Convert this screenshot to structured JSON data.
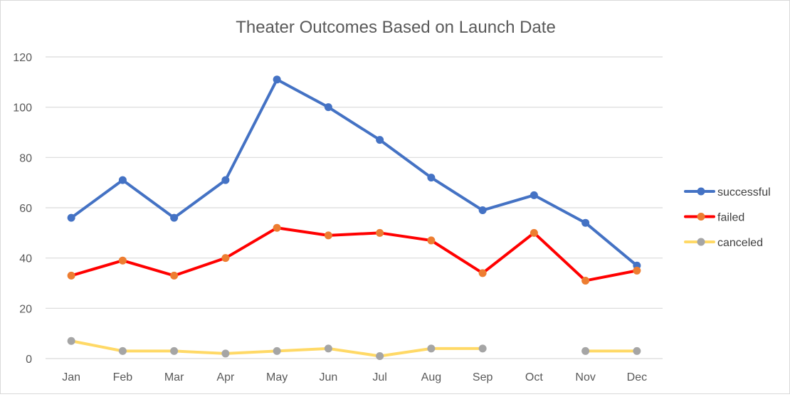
{
  "chart_data": {
    "type": "line",
    "title": "Theater Outcomes Based on Launch Date",
    "xlabel": "",
    "ylabel": "",
    "categories": [
      "Jan",
      "Feb",
      "Mar",
      "Apr",
      "May",
      "Jun",
      "Jul",
      "Aug",
      "Sep",
      "Oct",
      "Nov",
      "Dec"
    ],
    "ylim": [
      0,
      120
    ],
    "yticks": [
      0,
      20,
      40,
      60,
      80,
      100,
      120
    ],
    "grid": true,
    "legend_position": "right",
    "series": [
      {
        "name": "successful",
        "line_color": "#4472C4",
        "marker_color": "#4472C4",
        "values": [
          56,
          71,
          56,
          71,
          111,
          100,
          87,
          72,
          59,
          65,
          54,
          37
        ]
      },
      {
        "name": "failed",
        "line_color": "#FF0000",
        "marker_color": "#ED7D31",
        "values": [
          33,
          39,
          33,
          40,
          52,
          49,
          50,
          47,
          34,
          50,
          31,
          35
        ]
      },
      {
        "name": "canceled",
        "line_color": "#FFD966",
        "marker_color": "#A5A5A5",
        "values": [
          7,
          3,
          3,
          2,
          3,
          4,
          1,
          4,
          4,
          null,
          3,
          3
        ]
      }
    ]
  }
}
